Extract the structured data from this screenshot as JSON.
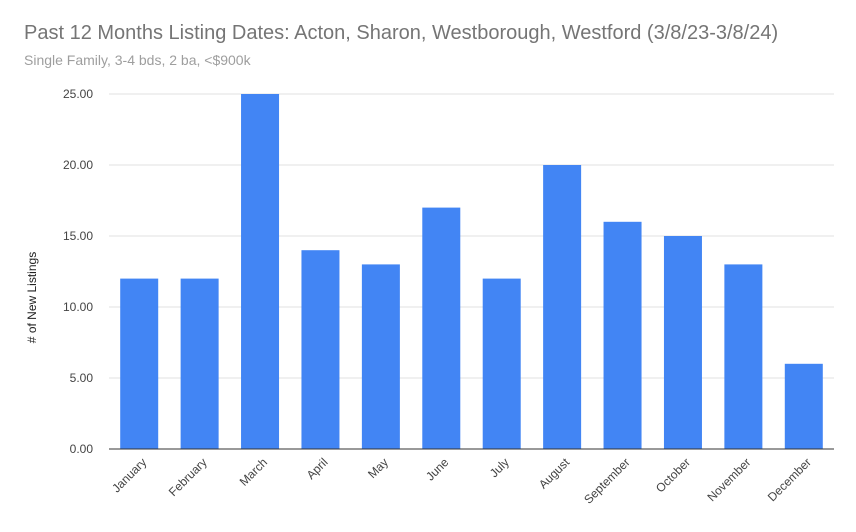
{
  "chart_data": {
    "type": "bar",
    "title": "Past 12 Months Listing Dates: Acton, Sharon, Westborough, Westford (3/8/23-3/8/24)",
    "subtitle": "Single Family, 3-4 bds, 2 ba, <$900k",
    "xlabel": "",
    "ylabel": "# of New Listings",
    "categories": [
      "January",
      "February",
      "March",
      "April",
      "May",
      "June",
      "July",
      "August",
      "September",
      "October",
      "November",
      "December"
    ],
    "values": [
      12,
      12,
      25,
      14,
      13,
      17,
      12,
      20,
      16,
      15,
      13,
      6
    ],
    "ylim": [
      0,
      25
    ],
    "yticks": [
      "0.00",
      "5.00",
      "10.00",
      "15.00",
      "20.00",
      "25.00"
    ],
    "grid": true,
    "legend": "none",
    "bar_color": "#4285f4"
  }
}
